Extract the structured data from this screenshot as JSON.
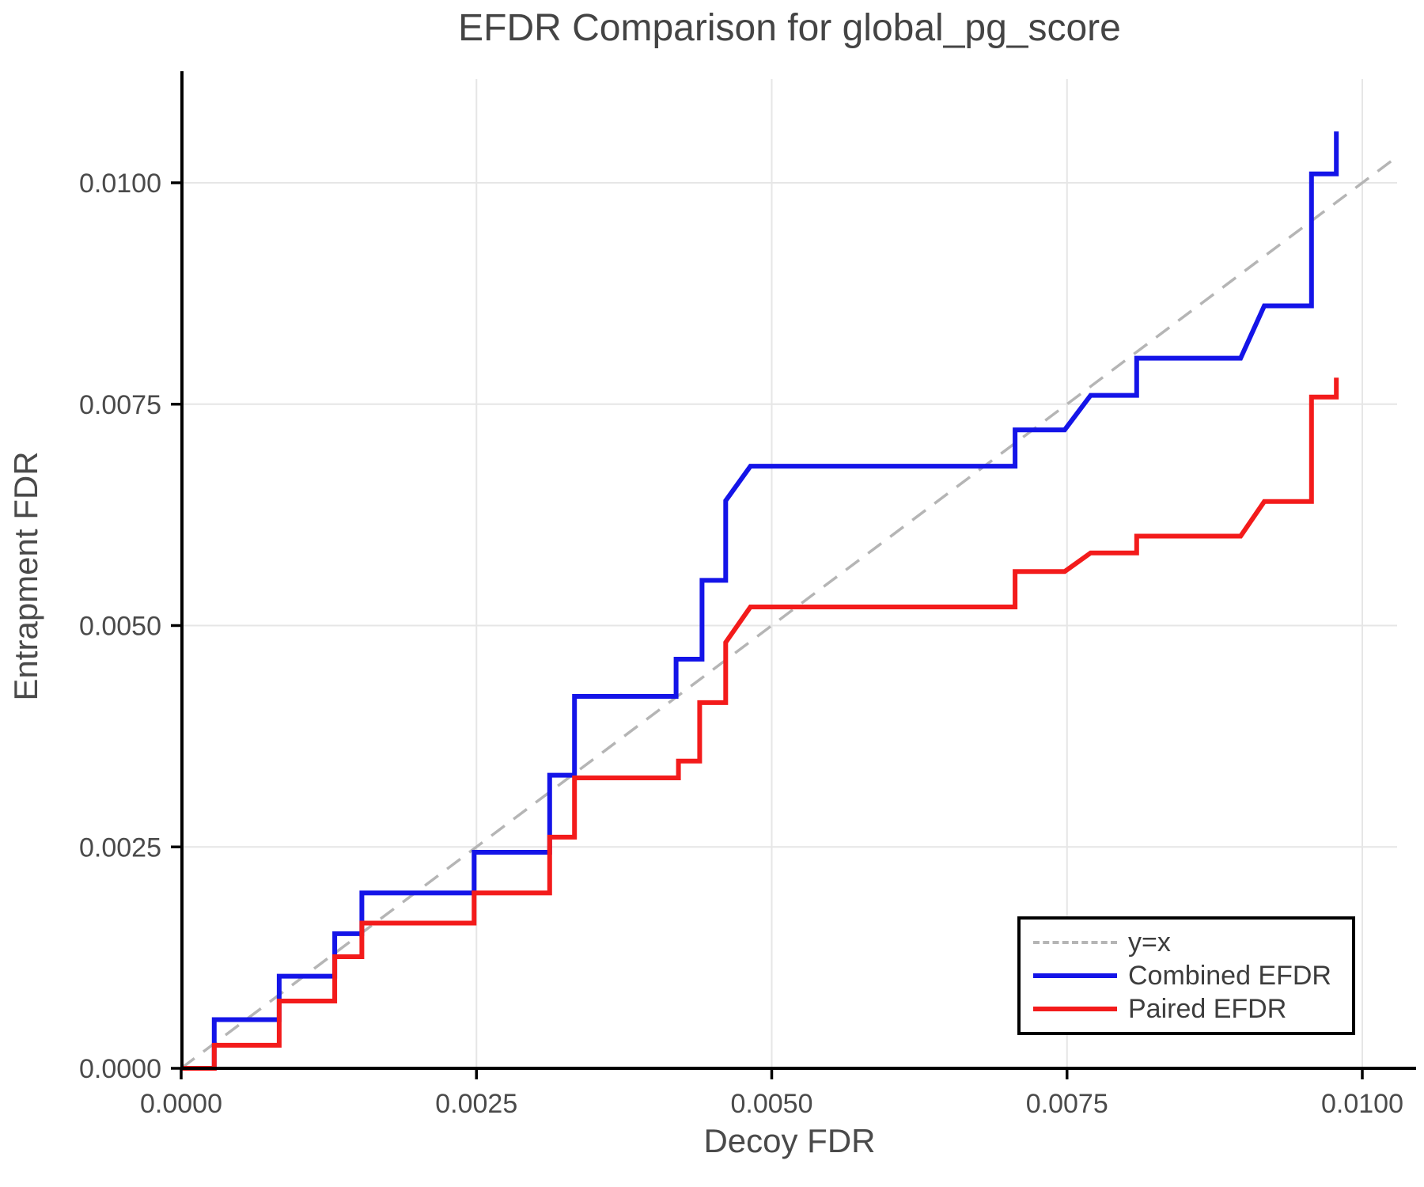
{
  "chart_data": {
    "type": "line",
    "subtype": "step-efdr-comparison",
    "title": "EFDR Comparison for global_pg_score",
    "xlabel": "Decoy FDR",
    "ylabel": "Entrapment FDR",
    "xlim": [
      0.0,
      0.0103
    ],
    "ylim": [
      0.0,
      0.0112
    ],
    "grid": true,
    "background": "#ffffff",
    "axis": {
      "x_tick_values": [
        0.0,
        0.0025,
        0.005,
        0.0075,
        0.01
      ],
      "x_tick_labels": [
        "0.0000",
        "0.0025",
        "0.0050",
        "0.0075",
        "0.0100"
      ],
      "y_tick_values": [
        0.0,
        0.0025,
        0.005,
        0.0075,
        0.01
      ],
      "y_tick_labels": [
        "0.0000",
        "0.0025",
        "0.0050",
        "0.0075",
        "0.0100"
      ],
      "gridline_color": "#e6e6e6",
      "spine_color": "#000000",
      "tick_label_color": "#4a4a4a"
    },
    "reference_line": {
      "label": "y=x",
      "color": "#b5b5b5",
      "style": "dashed",
      "points": [
        [
          0.0,
          0.0
        ],
        [
          0.010294,
          0.010294
        ]
      ]
    },
    "series": [
      {
        "name": "Combined EFDR",
        "color": "#1414e8",
        "points": [
          [
            0.0,
            0.0
          ],
          [
            0.00028,
            0.0
          ],
          [
            0.00028,
            0.00055
          ],
          [
            0.00083,
            0.00055
          ],
          [
            0.00083,
            0.00104
          ],
          [
            0.0013,
            0.00104
          ],
          [
            0.0013,
            0.00152
          ],
          [
            0.00153,
            0.00152
          ],
          [
            0.00153,
            0.00198
          ],
          [
            0.00248,
            0.00198
          ],
          [
            0.00248,
            0.00244
          ],
          [
            0.00312,
            0.00244
          ],
          [
            0.00312,
            0.00331
          ],
          [
            0.00333,
            0.00331
          ],
          [
            0.00333,
            0.0042
          ],
          [
            0.00419,
            0.0042
          ],
          [
            0.00419,
            0.00462
          ],
          [
            0.00441,
            0.00462
          ],
          [
            0.00441,
            0.00551
          ],
          [
            0.00461,
            0.00551
          ],
          [
            0.00461,
            0.00641
          ],
          [
            0.00482,
            0.0068
          ],
          [
            0.00706,
            0.0068
          ],
          [
            0.00706,
            0.00721
          ],
          [
            0.00748,
            0.00721
          ],
          [
            0.0077,
            0.0076
          ],
          [
            0.00809,
            0.0076
          ],
          [
            0.00809,
            0.00802
          ],
          [
            0.00897,
            0.00802
          ],
          [
            0.00917,
            0.00861
          ],
          [
            0.00957,
            0.00861
          ],
          [
            0.00957,
            0.0101
          ],
          [
            0.00978,
            0.0101
          ],
          [
            0.00978,
            0.01058
          ]
        ]
      },
      {
        "name": "Paired EFDR",
        "color": "#f31b1b",
        "points": [
          [
            0.0,
            0.0
          ],
          [
            0.00028,
            0.0
          ],
          [
            0.00028,
            0.00026
          ],
          [
            0.00083,
            0.00026
          ],
          [
            0.00083,
            0.00076
          ],
          [
            0.0013,
            0.00076
          ],
          [
            0.0013,
            0.00126
          ],
          [
            0.00153,
            0.00126
          ],
          [
            0.00153,
            0.00164
          ],
          [
            0.00248,
            0.00164
          ],
          [
            0.00248,
            0.00198
          ],
          [
            0.00312,
            0.00198
          ],
          [
            0.00312,
            0.00261
          ],
          [
            0.00333,
            0.00261
          ],
          [
            0.00333,
            0.00328
          ],
          [
            0.00421,
            0.00328
          ],
          [
            0.00421,
            0.00347
          ],
          [
            0.00439,
            0.00347
          ],
          [
            0.00439,
            0.00413
          ],
          [
            0.00461,
            0.00413
          ],
          [
            0.00461,
            0.00481
          ],
          [
            0.00482,
            0.00521
          ],
          [
            0.00706,
            0.00521
          ],
          [
            0.00706,
            0.00561
          ],
          [
            0.00748,
            0.00561
          ],
          [
            0.0077,
            0.00582
          ],
          [
            0.00809,
            0.00582
          ],
          [
            0.00809,
            0.00601
          ],
          [
            0.00897,
            0.00601
          ],
          [
            0.00917,
            0.0064
          ],
          [
            0.00957,
            0.0064
          ],
          [
            0.00957,
            0.00758
          ],
          [
            0.00978,
            0.00758
          ],
          [
            0.00978,
            0.0078
          ]
        ]
      }
    ],
    "legend": {
      "position": "lower right",
      "border_color": "#000000",
      "entries": [
        {
          "label": "y=x",
          "color": "#b5b5b5",
          "style": "dashed"
        },
        {
          "label": "Combined EFDR",
          "color": "#1414e8",
          "style": "solid"
        },
        {
          "label": "Paired EFDR",
          "color": "#f31b1b",
          "style": "solid"
        }
      ]
    }
  }
}
